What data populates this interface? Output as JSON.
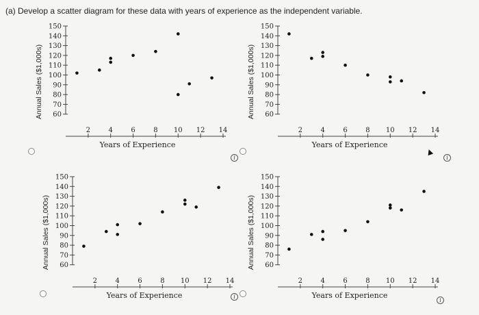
{
  "question": "(a) Develop a scatter diagram for these data with years of experience as the independent variable.",
  "chart_data": [
    {
      "type": "scatter",
      "xlabel": "Years of Experience",
      "ylabel": "Annual Sales ($1,000s)",
      "xticks": [
        2,
        4,
        6,
        8,
        10,
        12,
        14
      ],
      "yticks": [
        60,
        70,
        80,
        90,
        100,
        110,
        120,
        130,
        140,
        150
      ],
      "xlim": [
        0,
        14
      ],
      "ylim": [
        50,
        150
      ],
      "x": [
        1,
        3,
        4,
        4,
        6,
        8,
        10,
        10,
        11,
        13
      ],
      "y": [
        102,
        105,
        113,
        117,
        120,
        124,
        142,
        80,
        91,
        97
      ]
    },
    {
      "type": "scatter",
      "xlabel": "Years of Experience",
      "ylabel": "Annual Sales ($1,000s)",
      "xticks": [
        2,
        4,
        6,
        8,
        10,
        12,
        14
      ],
      "yticks": [
        60,
        70,
        80,
        90,
        100,
        110,
        120,
        130,
        140,
        150
      ],
      "xlim": [
        0,
        14
      ],
      "ylim": [
        50,
        150
      ],
      "x": [
        1,
        3,
        4,
        4,
        6,
        8,
        10,
        10,
        11,
        13
      ],
      "y": [
        142,
        117,
        119,
        123,
        110,
        100,
        93,
        98,
        94,
        82
      ]
    },
    {
      "type": "scatter",
      "xlabel": "Years of Experience",
      "ylabel": "Annual Sales ($1,000s)",
      "xticks": [
        2,
        4,
        6,
        8,
        10,
        12,
        14
      ],
      "yticks": [
        60,
        70,
        80,
        90,
        100,
        110,
        120,
        130,
        140,
        150
      ],
      "xlim": [
        0,
        14
      ],
      "ylim": [
        50,
        150
      ],
      "x": [
        1,
        3,
        4,
        4,
        6,
        8,
        10,
        10,
        11,
        13
      ],
      "y": [
        79,
        94,
        91,
        101,
        102,
        114,
        122,
        126,
        119,
        139
      ]
    },
    {
      "type": "scatter",
      "xlabel": "Years of Experience",
      "ylabel": "Annual Sales ($1,000s)",
      "xticks": [
        2,
        4,
        6,
        8,
        10,
        12,
        14
      ],
      "yticks": [
        60,
        70,
        80,
        90,
        100,
        110,
        120,
        130,
        140,
        150
      ],
      "xlim": [
        0,
        14
      ],
      "ylim": [
        50,
        150
      ],
      "x": [
        1,
        3,
        4,
        4,
        6,
        8,
        10,
        10,
        11,
        13
      ],
      "y": [
        76,
        91,
        86,
        94,
        95,
        104,
        118,
        121,
        116,
        135
      ]
    }
  ],
  "options": [
    {
      "id": "a"
    },
    {
      "id": "b"
    },
    {
      "id": "c"
    },
    {
      "id": "d"
    }
  ],
  "info_symbol": "i"
}
